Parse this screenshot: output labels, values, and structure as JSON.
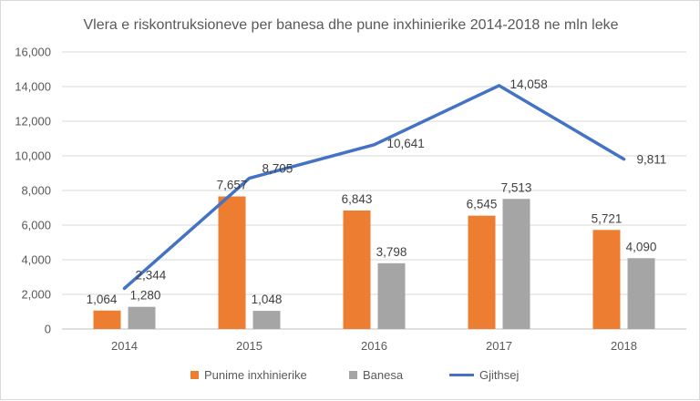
{
  "chart_data": {
    "type": "bar",
    "title": "Vlera e riskontruksioneve per banesa dhe pune inxhinierike 2014-2018 ne mln leke",
    "categories": [
      "2014",
      "2015",
      "2016",
      "2017",
      "2018"
    ],
    "series": [
      {
        "name": "Punime inxhinierike",
        "type": "bar",
        "color": "#ed7d31",
        "values": [
          1064,
          7657,
          6843,
          6545,
          5721
        ],
        "labels": [
          "1,064",
          "7,657",
          "6,843",
          "6,545",
          "5,721"
        ]
      },
      {
        "name": "Banesa",
        "type": "bar",
        "color": "#a5a5a5",
        "values": [
          1280,
          1048,
          3798,
          7513,
          4090
        ],
        "labels": [
          "1,280",
          "1,048",
          "3,798",
          "7,513",
          "4,090"
        ]
      },
      {
        "name": "Gjithsej",
        "type": "line",
        "color": "#4472c4",
        "values": [
          2344,
          8705,
          10641,
          14058,
          9811
        ],
        "labels": [
          "2,344",
          "8,705",
          "10,641",
          "14,058",
          "9,811"
        ]
      }
    ],
    "ylim": [
      0,
      16000
    ],
    "yticks": [
      "0",
      "2,000",
      "4,000",
      "6,000",
      "8,000",
      "10,000",
      "12,000",
      "14,000",
      "16,000"
    ],
    "grid": true,
    "legend_position": "bottom"
  }
}
